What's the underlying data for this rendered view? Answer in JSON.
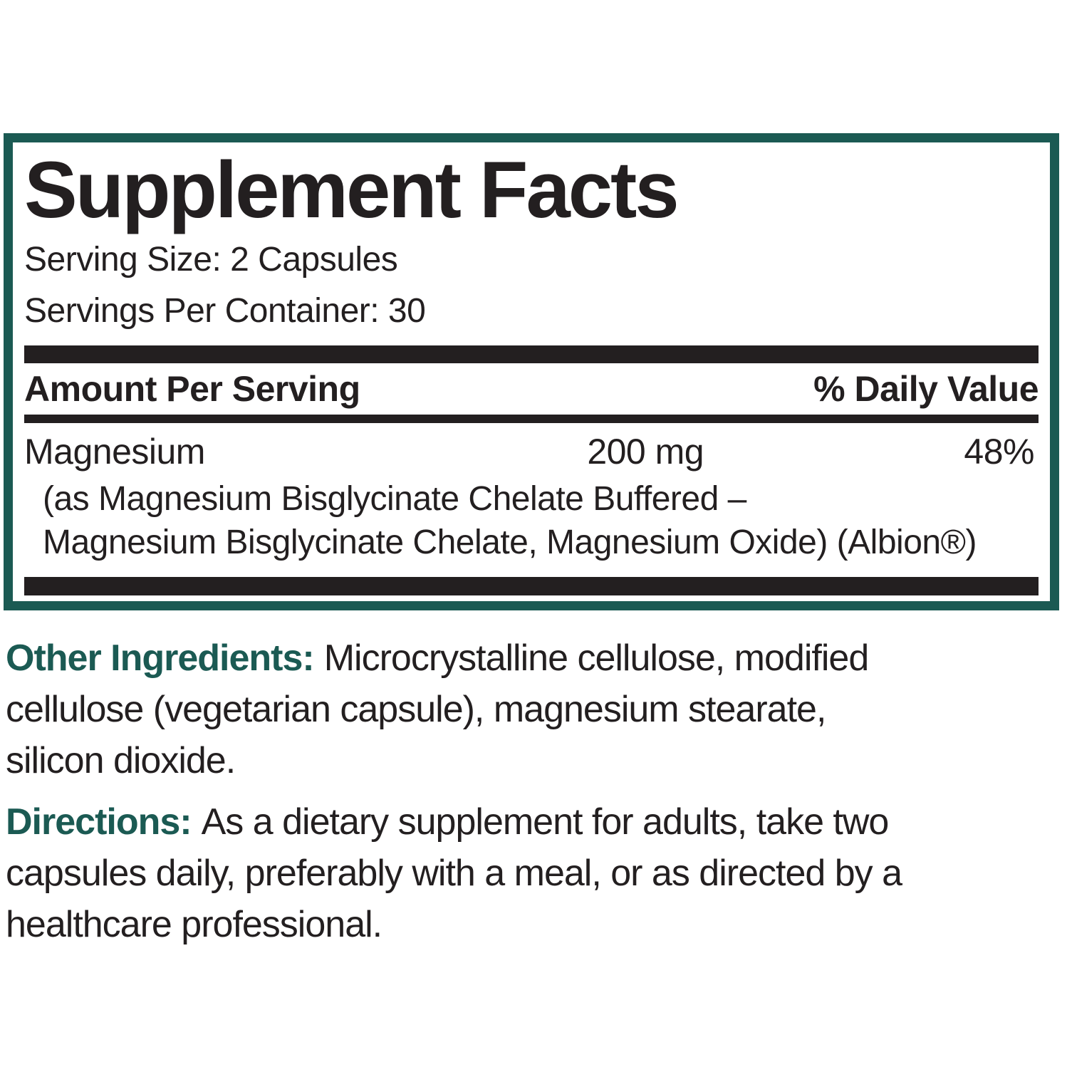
{
  "colors": {
    "teal_accent": "#1b5a53",
    "ink": "#231f20",
    "background": "#ffffff"
  },
  "panel": {
    "title": "Supplement Facts",
    "serving_size": "Serving Size: 2 Capsules",
    "servings_per_container": "Servings Per Container: 30",
    "header": {
      "amount": "Amount Per Serving",
      "daily_value": "% Daily Value"
    },
    "rows": [
      {
        "name": "Magnesium",
        "amount": "200 mg",
        "dv": "48%",
        "details": [
          "(as Magnesium Bisglycinate Chelate Buffered –",
          "Magnesium Bisglycinate Chelate, Magnesium Oxide) (Albion®)"
        ]
      }
    ]
  },
  "sections": [
    {
      "label": "Other Ingredients:",
      "lines": [
        "Microcrystalline cellulose, modified",
        "cellulose (vegetarian capsule), magnesium stearate,",
        "silicon dioxide."
      ]
    },
    {
      "label": "Directions:",
      "lines": [
        "As a dietary supplement for adults, take two",
        "capsules daily, preferably with a meal, or as directed by a",
        "healthcare professional."
      ]
    }
  ]
}
